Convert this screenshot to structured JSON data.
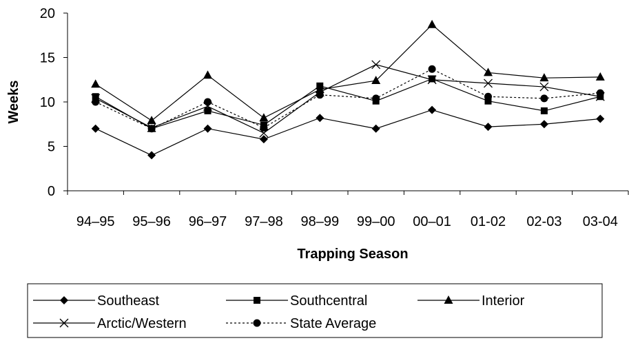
{
  "chart_data": {
    "type": "line",
    "title": "",
    "xlabel": "Trapping Season",
    "ylabel": "Weeks",
    "categories": [
      "94–95",
      "95–96",
      "96–97",
      "97–98",
      "98–99",
      "99–00",
      "00–01",
      "01-02",
      "02-03",
      "03-04"
    ],
    "ylim": [
      0,
      20
    ],
    "yticks": [
      0,
      5,
      10,
      15,
      20
    ],
    "grid": false,
    "legend_position": "bottom",
    "series": [
      {
        "name": "Southeast",
        "marker": "diamond",
        "dash": "solid",
        "color": "#000000",
        "values": [
          7,
          4,
          7,
          5.8,
          8.2,
          7,
          9.1,
          7.2,
          7.5,
          8.1
        ]
      },
      {
        "name": "Southcentral",
        "marker": "square",
        "dash": "solid",
        "color": "#000000",
        "values": [
          10.6,
          7,
          9,
          7.4,
          11.8,
          10.1,
          12.6,
          10.1,
          9,
          10.6
        ]
      },
      {
        "name": "Interior",
        "marker": "triangle",
        "dash": "solid",
        "color": "#000000",
        "values": [
          12,
          7.9,
          13,
          8.2,
          11.4,
          12.4,
          18.7,
          13.3,
          12.7,
          12.8
        ]
      },
      {
        "name": "Arctic/Western",
        "marker": "x",
        "dash": "solid",
        "color": "#000000",
        "values": [
          10.4,
          7.1,
          9.5,
          6.5,
          11.1,
          14.2,
          12.5,
          12.1,
          11.7,
          10.6
        ]
      },
      {
        "name": "State Average",
        "marker": "circle",
        "dash": "dotted",
        "color": "#000000",
        "values": [
          10,
          7,
          10,
          7.1,
          10.8,
          10.4,
          13.7,
          10.6,
          10.4,
          11
        ]
      }
    ]
  }
}
